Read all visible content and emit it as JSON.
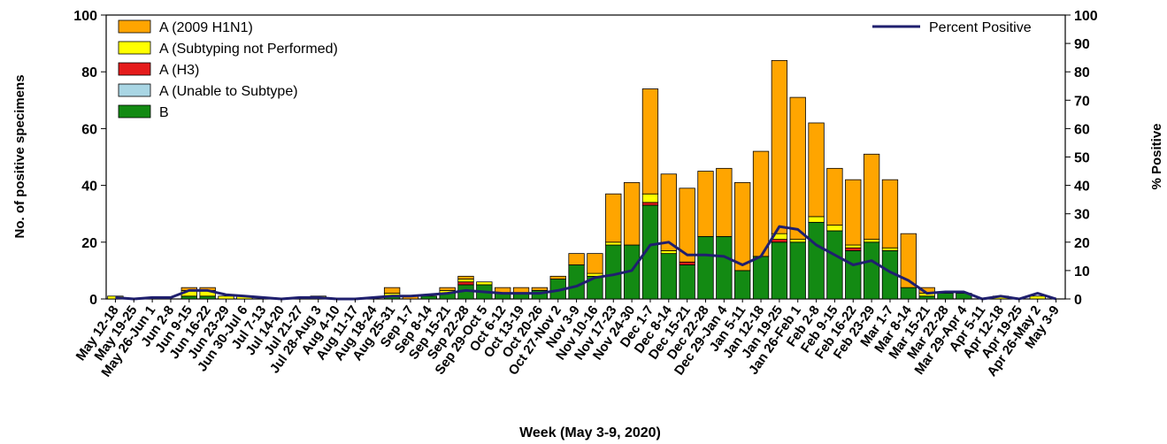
{
  "chart_data": {
    "type": "bar",
    "stacked": true,
    "xlabel": "Week (May 3-9, 2020)",
    "ylabel_left": "No. of positive specimens",
    "ylabel_right": "% Positive",
    "ylim_left": [
      0,
      100
    ],
    "ylim_right": [
      0,
      100
    ],
    "left_ticks": [
      "0",
      "20",
      "40",
      "60",
      "80",
      "100"
    ],
    "right_ticks": [
      "0",
      "10",
      "20",
      "30",
      "40",
      "50",
      "60",
      "70",
      "80",
      "90",
      "100"
    ],
    "grid": false,
    "legend_placement": "top-left",
    "line_legend_placement": "top-right",
    "categories": [
      "May 12-18",
      "May 19-25",
      "May 26-Jun 1",
      "Jun 2-8",
      "Jun 9-15",
      "Jun 16-22",
      "Jun 23-29",
      "Jun 30-Jul 6",
      "Jul 7-13",
      "Jul 14-20",
      "Jul 21-27",
      "Jul 28-Aug 3",
      "Aug 4-10",
      "Aug 11-17",
      "Aug 18-24",
      "Aug 25-31",
      "Sep 1-7",
      "Sep 8-14",
      "Sep 15-21",
      "Sep 22-28",
      "Sep 29-Oct 5",
      "Oct 6-12",
      "Oct 13-19",
      "Oct 20-26",
      "Oct 27-Nov 2",
      "Nov 3-9",
      "Nov 10-16",
      "Nov 17-23",
      "Nov 24-30",
      "Dec 1-7",
      "Dec 8-14",
      "Dec 15-21",
      "Dec 22-28",
      "Dec 29-Jan 4",
      "Jan 5-11",
      "Jan 12-18",
      "Jan 19-25",
      "Jan 26-Feb 1",
      "Feb 2-8",
      "Feb 9-15",
      "Feb 16-22",
      "Feb 23-29",
      "Mar 1-7",
      "Mar 8-14",
      "Mar 15-21",
      "Mar 22-28",
      "Mar 29-Apr 4",
      "Apr 5-11",
      "Apr 12-18",
      "Apr 19-25",
      "Apr 26-May 2",
      "May 3-9"
    ],
    "series": [
      {
        "name": "B",
        "color": "#138a13",
        "values": [
          0,
          0,
          0,
          0,
          1,
          1,
          0,
          0,
          0,
          0,
          0,
          0,
          0,
          0,
          0,
          1,
          0,
          1,
          2,
          5,
          5,
          2,
          2,
          3,
          7,
          12,
          8,
          19,
          19,
          33,
          16,
          12,
          22,
          22,
          10,
          15,
          20,
          20,
          27,
          24,
          17,
          20,
          17,
          4,
          1,
          2,
          2,
          0,
          0,
          0,
          0,
          0
        ]
      },
      {
        "name": "A (Unable to Subtype)",
        "color": "#a9d6e4",
        "values": [
          0,
          0,
          0,
          0,
          0,
          0,
          0,
          0,
          0,
          0,
          0,
          0,
          0,
          0,
          0,
          0,
          0,
          0,
          0,
          0,
          0,
          0,
          0,
          0,
          0,
          0,
          0,
          0,
          0,
          0,
          0,
          0,
          0,
          0,
          0,
          0,
          0,
          0,
          0,
          0,
          0,
          0,
          0,
          0,
          0,
          0,
          0,
          0,
          0,
          0,
          0,
          0
        ]
      },
      {
        "name": "A (H3)",
        "color": "#e51c1c",
        "values": [
          0,
          0,
          0,
          0,
          0,
          0,
          0,
          0,
          0,
          0,
          0,
          0,
          0,
          0,
          0,
          0,
          0,
          0,
          0,
          1,
          0,
          0,
          0,
          0,
          0,
          0,
          0,
          0,
          0,
          1,
          0,
          1,
          0,
          0,
          0,
          0,
          1,
          0,
          0,
          0,
          1,
          0,
          0,
          0,
          0,
          0,
          0,
          0,
          0,
          0,
          0,
          0
        ]
      },
      {
        "name": "A (Subtyping not Performed)",
        "color": "#ffff00",
        "values": [
          1,
          0,
          0,
          0,
          2,
          2,
          1,
          1,
          0,
          0,
          0,
          1,
          0,
          0,
          0,
          1,
          0,
          0,
          1,
          1,
          1,
          0,
          0,
          0,
          0,
          0,
          1,
          1,
          0,
          3,
          1,
          0,
          0,
          0,
          0,
          0,
          2,
          1,
          2,
          2,
          1,
          1,
          1,
          0,
          1,
          0,
          0,
          0,
          1,
          0,
          1,
          0
        ]
      },
      {
        "name": "A (2009 H1N1)",
        "color": "#ffa500",
        "values": [
          0,
          0,
          0,
          0,
          1,
          1,
          0,
          0,
          0,
          0,
          0,
          0,
          0,
          0,
          0,
          2,
          1,
          0,
          1,
          1,
          0,
          2,
          2,
          1,
          1,
          4,
          7,
          17,
          22,
          37,
          27,
          26,
          23,
          24,
          31,
          37,
          61,
          50,
          33,
          20,
          23,
          30,
          24,
          19,
          2,
          0,
          0,
          0,
          0,
          0,
          0,
          0
        ]
      }
    ],
    "line_series": {
      "name": "Percent Positive",
      "color": "#1f1f6e",
      "axis": "right",
      "values": [
        0.5,
        0,
        0.5,
        0.5,
        3,
        3,
        1.5,
        1,
        0.5,
        0,
        0.5,
        0.5,
        0,
        0,
        0.5,
        1,
        1,
        1.5,
        2,
        3,
        2.5,
        2,
        2,
        2,
        3,
        4.5,
        7.5,
        8.5,
        10,
        19,
        20,
        15.5,
        15.5,
        15,
        12,
        15,
        25.5,
        24.5,
        19,
        15.5,
        12,
        13.5,
        9.5,
        6.5,
        2,
        2.5,
        2.5,
        0,
        1,
        0,
        2,
        0
      ]
    }
  }
}
